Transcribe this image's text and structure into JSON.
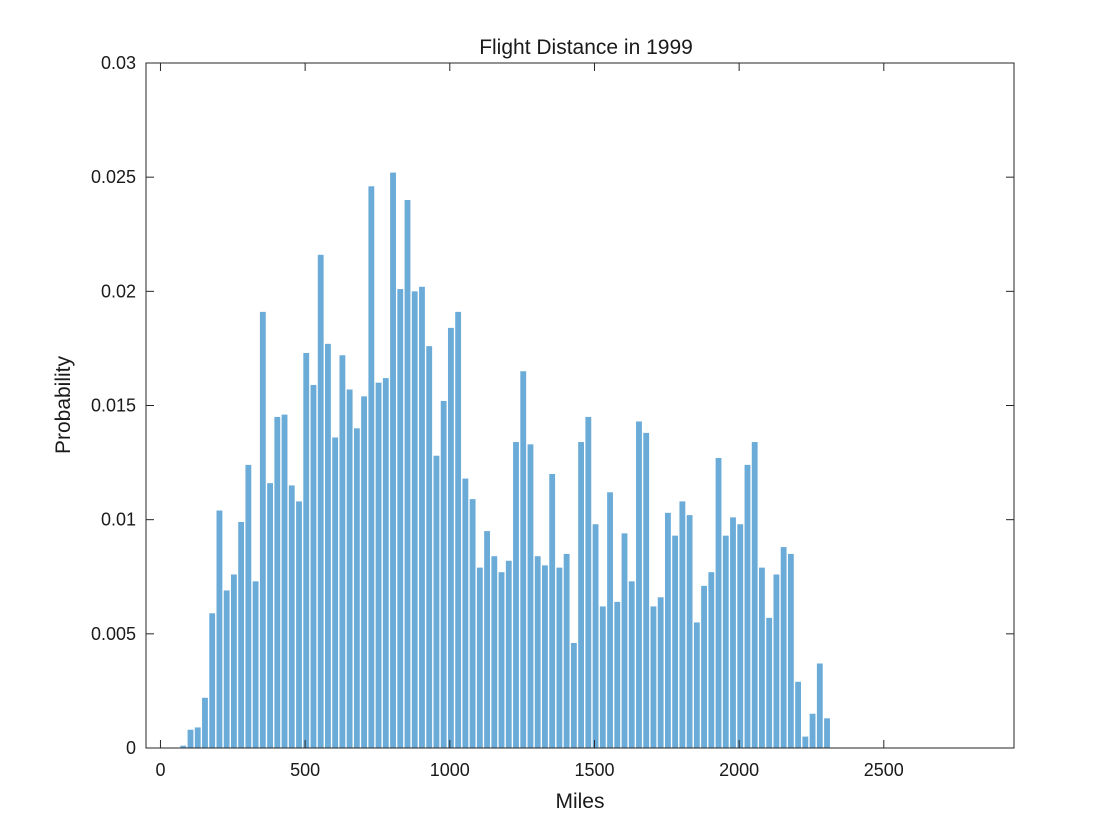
{
  "chart_data": {
    "type": "bar",
    "title": "Flight Distance in 1999",
    "xlabel": "Miles",
    "ylabel": "Probability",
    "xlim": [
      -50,
      2950
    ],
    "ylim": [
      0,
      0.03
    ],
    "xticks": [
      0,
      500,
      1000,
      1500,
      2000,
      2500
    ],
    "xtick_labels": [
      "0",
      "500",
      "1000",
      "1500",
      "2000",
      "2500"
    ],
    "yticks": [
      0,
      0.005,
      0.01,
      0.015,
      0.02,
      0.025,
      0.03
    ],
    "ytick_labels": [
      "0",
      "0.005",
      "0.01",
      "0.015",
      "0.02",
      "0.025",
      "0.03"
    ],
    "bin_start": 67,
    "bin_width": 25,
    "bar_color": "#6aabd8",
    "values": [
      0.0001,
      0.0008,
      0.0009,
      0.0022,
      0.0059,
      0.0104,
      0.0069,
      0.0076,
      0.0099,
      0.0124,
      0.0073,
      0.0191,
      0.0116,
      0.0145,
      0.0146,
      0.0115,
      0.0108,
      0.0173,
      0.0159,
      0.0216,
      0.0177,
      0.0136,
      0.0172,
      0.0157,
      0.014,
      0.0154,
      0.0246,
      0.016,
      0.0162,
      0.0252,
      0.0201,
      0.024,
      0.02,
      0.0202,
      0.0176,
      0.0128,
      0.0152,
      0.0184,
      0.0191,
      0.0118,
      0.0109,
      0.0079,
      0.0095,
      0.0084,
      0.0077,
      0.0082,
      0.0134,
      0.0165,
      0.0133,
      0.0084,
      0.008,
      0.012,
      0.0079,
      0.0085,
      0.0046,
      0.0134,
      0.0145,
      0.0098,
      0.0062,
      0.0112,
      0.0064,
      0.0094,
      0.0073,
      0.0143,
      0.0138,
      0.0062,
      0.0066,
      0.0103,
      0.0093,
      0.0108,
      0.0102,
      0.0055,
      0.0071,
      0.0077,
      0.0127,
      0.0093,
      0.0101,
      0.0098,
      0.0124,
      0.0134,
      0.0079,
      0.0057,
      0.0076,
      0.0088,
      0.0085,
      0.0029,
      0.0005,
      0.0015,
      0.0037,
      0.0013
    ]
  }
}
